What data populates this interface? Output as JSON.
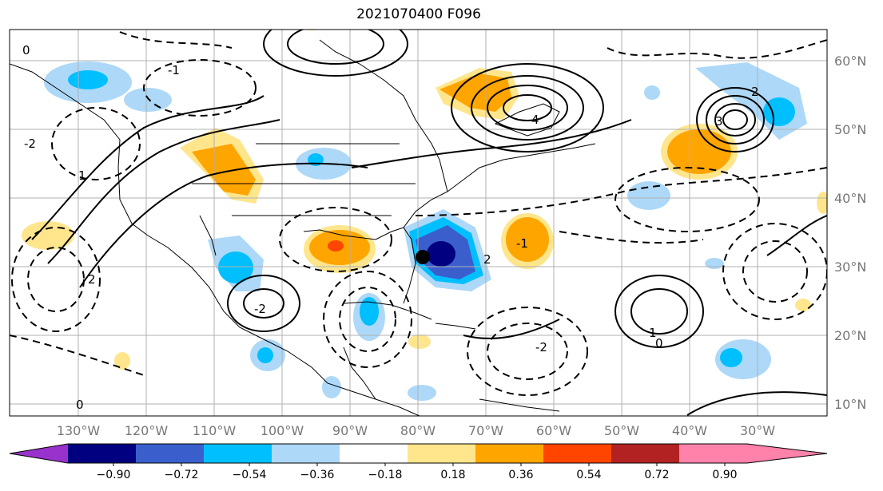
{
  "title": "2021070400 F096",
  "map": {
    "lat_labels": [
      "60°N",
      "50°N",
      "40°N",
      "30°N",
      "20°N",
      "10°N"
    ],
    "lon_labels": [
      "130°W",
      "120°W",
      "110°W",
      "100°W",
      "90°W",
      "80°W",
      "70°W",
      "60°W",
      "50°W",
      "40°W",
      "30°W"
    ],
    "contour_labels": [
      "0",
      "1",
      "-1",
      "-2",
      "2",
      "3",
      "4",
      "-1",
      "2",
      "-2",
      "0",
      "1",
      "-2",
      "2",
      "0"
    ],
    "marker": "storm-center-dot"
  },
  "colorbar": {
    "ticks": [
      "−0.90",
      "−0.72",
      "−0.54",
      "−0.36",
      "−0.18",
      "0.18",
      "0.36",
      "0.54",
      "0.72",
      "0.90"
    ],
    "colors": [
      "#9932cc",
      "#000080",
      "#3a5fcd",
      "#00bfff",
      "#add8f8",
      "#ffffff",
      "#ffe68c",
      "#ffa500",
      "#ff4500",
      "#b22222",
      "#ff82ab",
      "#ff82ab"
    ]
  }
}
